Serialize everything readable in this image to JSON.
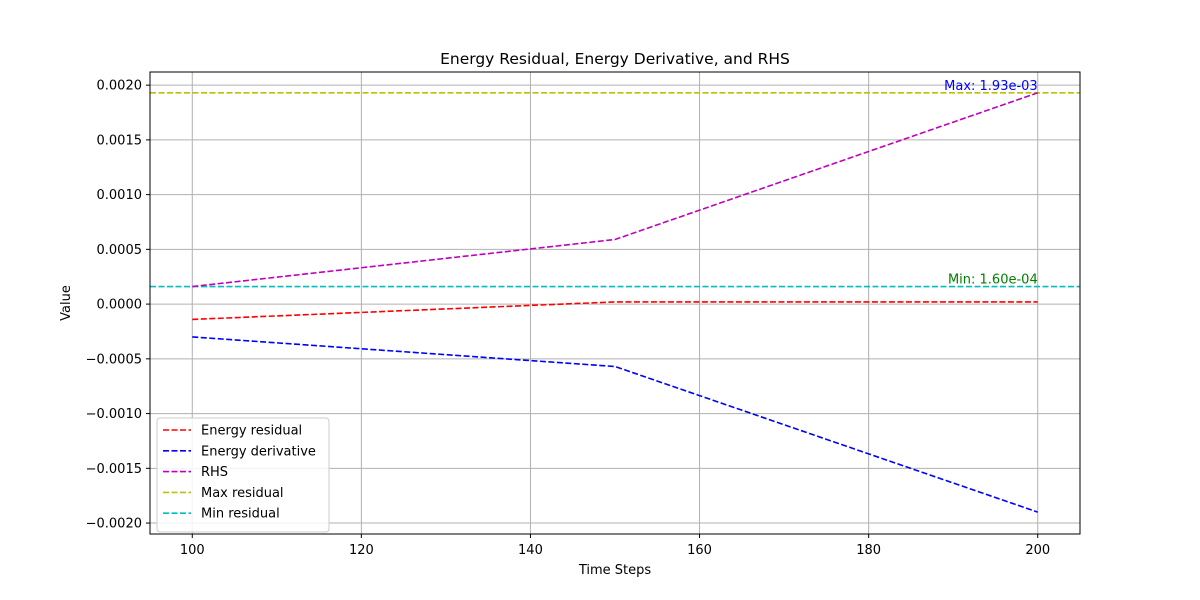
{
  "chart_data": {
    "type": "line",
    "title": "Energy Residual, Energy Derivative, and RHS",
    "xlabel": "Time Steps",
    "ylabel": "Value",
    "xlim": [
      95,
      205
    ],
    "ylim": [
      -0.0021,
      0.00212
    ],
    "grid": true,
    "legend_position": "lower-left",
    "x_ticks": [
      100,
      120,
      140,
      160,
      180,
      200
    ],
    "x_tick_labels": [
      "100",
      "120",
      "140",
      "160",
      "180",
      "200"
    ],
    "y_ticks": [
      -0.002,
      -0.0015,
      -0.001,
      -0.0005,
      0.0,
      0.0005,
      0.001,
      0.0015,
      0.002
    ],
    "y_tick_labels": [
      "−0.0020",
      "−0.0015",
      "−0.0010",
      "−0.0005",
      "0.0000",
      "0.0005",
      "0.0010",
      "0.0015",
      "0.0020"
    ],
    "series": [
      {
        "name": "Energy residual",
        "color": "#ff0000",
        "style": "dashed",
        "x": [
          100,
          150,
          200
        ],
        "values": [
          -0.00014,
          2e-05,
          2e-05
        ]
      },
      {
        "name": "Energy derivative",
        "color": "#0000ff",
        "style": "dashed",
        "x": [
          100,
          150,
          200
        ],
        "values": [
          -0.0003,
          -0.00057,
          -0.0019
        ]
      },
      {
        "name": "RHS",
        "color": "#bf00bf",
        "style": "dashed",
        "x": [
          100,
          150,
          200
        ],
        "values": [
          0.00016,
          0.00059,
          0.00193
        ]
      }
    ],
    "reference_lines": [
      {
        "name": "Max residual",
        "color": "#bfbf00",
        "style": "dashed",
        "value": 0.00193
      },
      {
        "name": "Min residual",
        "color": "#00bfbf",
        "style": "dashed",
        "value": 0.00016
      }
    ],
    "annotations": [
      {
        "text": "Max: 1.93e-03",
        "color": "#0000ff",
        "x": 200,
        "y": 0.00193
      },
      {
        "text": "Min: 1.60e-04",
        "color": "#008000",
        "x": 200,
        "y": 0.00016
      }
    ]
  }
}
